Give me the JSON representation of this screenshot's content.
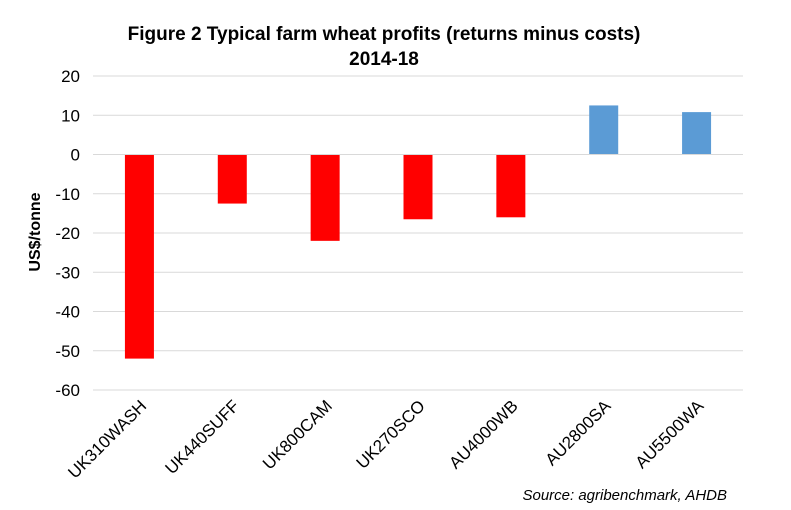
{
  "chart_data": {
    "type": "bar",
    "title": "Figure 2  Typical farm wheat profits (returns minus costs)",
    "subtitle": "2014-18",
    "xlabel": "",
    "ylabel": "US$/tonne",
    "ylim": [
      -60,
      20
    ],
    "yticks": [
      20,
      10,
      0,
      -10,
      -20,
      -30,
      -40,
      -50,
      -60
    ],
    "grid": true,
    "categories": [
      "UK310WASH",
      "UK440SUFF",
      "UK800CAM",
      "UK270SCO",
      "AU4000WB",
      "AU2800SA",
      "AU5500WA"
    ],
    "values": [
      -52,
      -12.5,
      -22,
      -16.5,
      -16,
      12.5,
      10.8
    ],
    "colors": [
      "#ff0000",
      "#ff0000",
      "#ff0000",
      "#ff0000",
      "#ff0000",
      "#5b9bd5",
      "#5b9bd5"
    ],
    "source": "Source: agribenchmark, AHDB"
  }
}
